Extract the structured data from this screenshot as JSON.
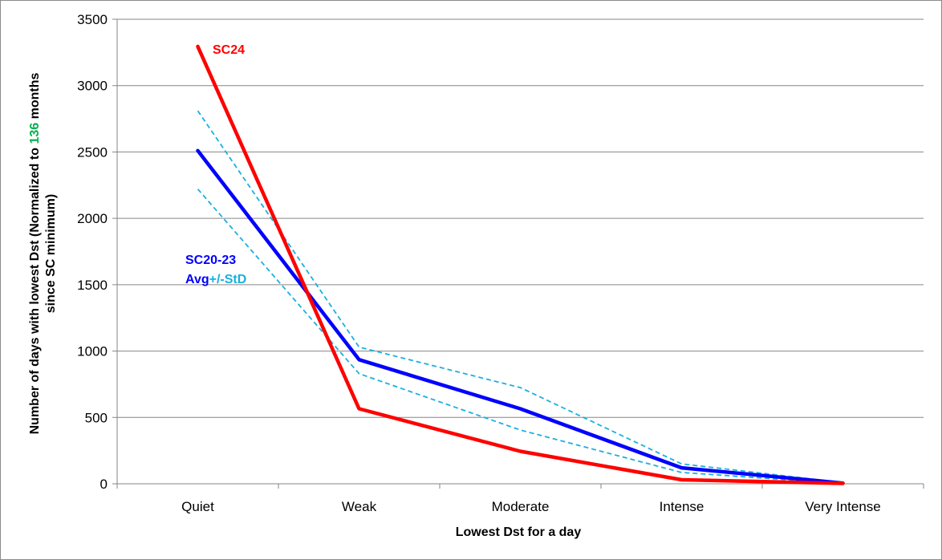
{
  "chart_data": {
    "type": "line",
    "categories": [
      "Quiet",
      "Weak",
      "Moderate",
      "Intense",
      "Very Intense"
    ],
    "series": [
      {
        "name": "SC24",
        "values": [
          3295,
          565,
          245,
          30,
          3
        ],
        "color": "#ff0000",
        "style": "solid"
      },
      {
        "name": "SC20-23 Avg",
        "values": [
          2510,
          935,
          565,
          120,
          5
        ],
        "color": "#0000ff",
        "style": "solid"
      },
      {
        "name": "+StD",
        "values": [
          2810,
          1030,
          725,
          150,
          9
        ],
        "color": "#1ab0e0",
        "style": "dashed"
      },
      {
        "name": "-StD",
        "values": [
          2220,
          830,
          405,
          85,
          2
        ],
        "color": "#1ab0e0",
        "style": "dashed"
      }
    ],
    "ylim": [
      0,
      3500
    ],
    "yticks": [
      0,
      500,
      1000,
      1500,
      2000,
      2500,
      3000,
      3500
    ],
    "grid": true,
    "xlabel": "Lowest Dst for a day",
    "ylabel": {
      "line1_pre": "Number of days with lowest Dst (Normalized to ",
      "line1_highlight": "136",
      "line1_post": " months",
      "line2": "since SC minimum)",
      "highlight_color": "#00b050"
    },
    "annotations": {
      "sc24": {
        "text": "SC24",
        "color": "#ff0000"
      },
      "sc20_23": {
        "text": "SC20-23",
        "color": "#0000ff"
      },
      "avg": {
        "text": "Avg",
        "color": "#0000ff"
      },
      "stdev": {
        "text": "+/-StD",
        "color": "#1ab0e0"
      }
    }
  }
}
